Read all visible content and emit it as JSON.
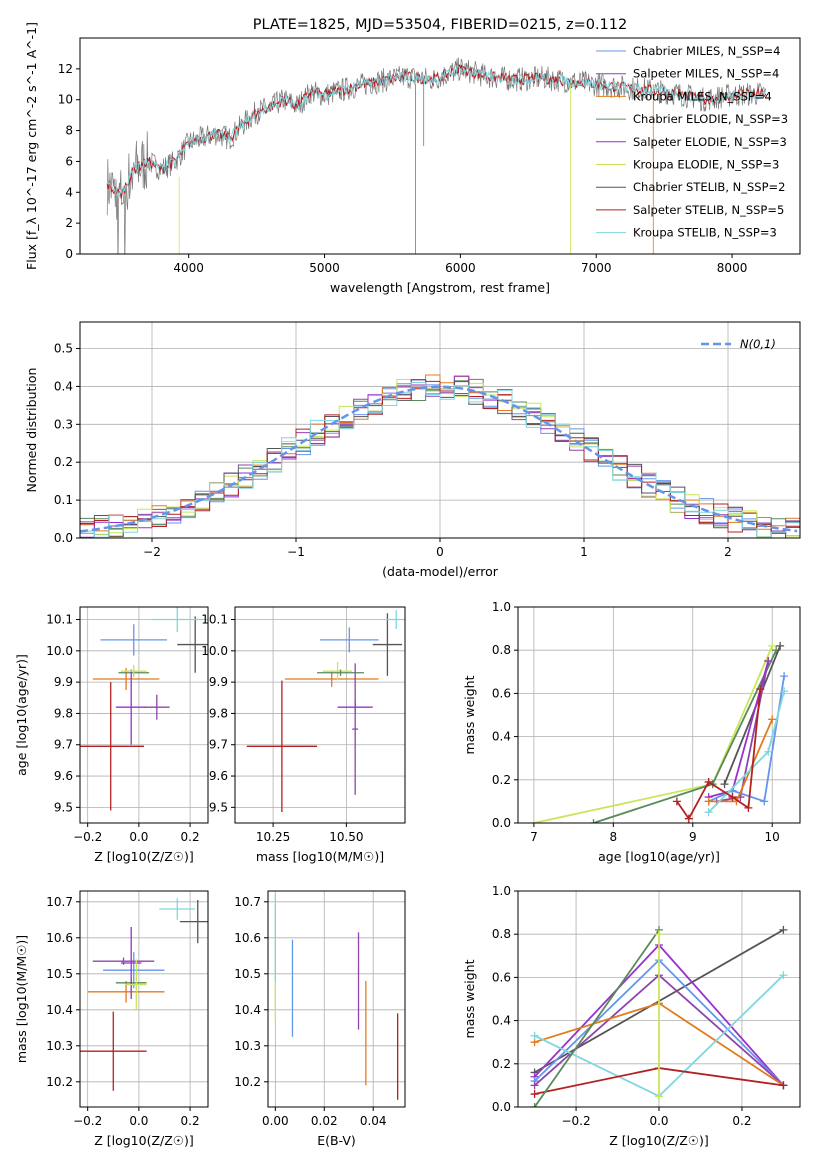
{
  "title": "PLATE=1825, MJD=53504, FIBERID=0215, z=0.112",
  "colors": {
    "Chabrier MILES": "#6495ed",
    "Salpeter MILES": "#8e44ad",
    "Kroupa MILES": "#e07b1f",
    "Chabrier ELODIE": "#5a8a5a",
    "Salpeter ELODIE": "#9932cc",
    "Kroupa ELODIE": "#c8e65a",
    "Chabrier STELIB": "#555555",
    "Salpeter STELIB": "#b22222",
    "Kroupa STELIB": "#7fd6e0"
  },
  "chart_data": [
    {
      "id": "spectrum",
      "type": "line",
      "xlabel": "wavelength [Angstrom, rest frame]",
      "ylabel": "Flux [f_λ 10^-17 erg cm^-2 s^-1 A^-1]",
      "xlim": [
        3200,
        8500
      ],
      "ylim": [
        0,
        14
      ],
      "xticks": [
        4000,
        5000,
        6000,
        7000,
        8000
      ],
      "yticks": [
        0,
        2,
        4,
        6,
        8,
        10,
        12
      ],
      "legend_position": "upper right",
      "legend": [
        "Chabrier MILES, N_SSP=4",
        "Salpeter MILES, N_SSP=4",
        "Kroupa MILES, N_SSP=4",
        "Chabrier ELODIE, N_SSP=3",
        "Salpeter ELODIE, N_SSP=3",
        "Kroupa ELODIE, N_SSP=3",
        "Chabrier STELIB, N_SSP=2",
        "Salpeter STELIB, N_SSP=5",
        "Kroupa STELIB, N_SSP=3"
      ],
      "data_x": [
        3400,
        3500,
        3600,
        3700,
        3800,
        3900,
        4000,
        4100,
        4200,
        4300,
        4400,
        4500,
        4600,
        4700,
        4800,
        4900,
        5000,
        5200,
        5400,
        5600,
        5800,
        6000,
        6200,
        6400,
        6600,
        6800,
        7000,
        7200,
        7400,
        7600,
        7800,
        8000,
        8250
      ],
      "data_y": [
        4.5,
        3.8,
        5.5,
        6,
        5.5,
        6,
        7.2,
        7.5,
        7.8,
        7.5,
        8.4,
        9.2,
        9.5,
        10,
        9.6,
        10.5,
        10.3,
        10.8,
        11.2,
        11.5,
        11.3,
        12,
        11.5,
        11.3,
        11.4,
        11.2,
        11,
        10.8,
        10.6,
        10.4,
        10,
        10.3,
        10.4
      ]
    },
    {
      "id": "residuals",
      "type": "histogram",
      "xlabel": "(data-model)/error",
      "ylabel": "Normed distribution",
      "xlim": [
        -2.5,
        2.5
      ],
      "ylim": [
        0,
        0.57
      ],
      "xticks": [
        -2,
        -1,
        0,
        1,
        2
      ],
      "yticks": [
        0.0,
        0.1,
        0.2,
        0.3,
        0.4,
        0.5
      ],
      "grid": true,
      "legend_position": "upper right",
      "reference_curve": "N(0,1)"
    },
    {
      "id": "age_vs_Z",
      "type": "scatter",
      "error_bars": true,
      "xlabel": "Z [log10(Z/Z☉)]",
      "ylabel": "age [log10(age/yr)]",
      "xlim": [
        -0.23,
        0.27
      ],
      "ylim": [
        9.45,
        10.14
      ],
      "xticks": [
        -0.2,
        0.0,
        0.2
      ],
      "yticks": [
        9.5,
        9.6,
        9.7,
        9.8,
        9.9,
        10.0,
        10.1
      ],
      "grid": true,
      "points": [
        {
          "s": "Chabrier MILES",
          "x": -0.02,
          "xe": 0.13,
          "y": 10.035,
          "ye": 0.05
        },
        {
          "s": "Salpeter MILES",
          "x": 0.07,
          "xe": 0.05,
          "y": 9.82,
          "ye": 0.04
        },
        {
          "s": "Kroupa MILES",
          "x": -0.05,
          "xe": 0.13,
          "y": 9.91,
          "ye": 0.035
        },
        {
          "s": "Chabrier ELODIE",
          "x": -0.02,
          "xe": 0.06,
          "y": 9.93,
          "ye": 0.01
        },
        {
          "s": "Salpeter ELODIE",
          "x": -0.03,
          "xe": 0.06,
          "y": 9.82,
          "ye": 0.12
        },
        {
          "s": "Kroupa ELODIE",
          "x": -0.02,
          "xe": 0.05,
          "y": 9.935,
          "ye": 0.02
        },
        {
          "s": "Chabrier STELIB",
          "x": 0.22,
          "xe": 0.07,
          "y": 10.02,
          "ye": 0.09
        },
        {
          "s": "Salpeter STELIB",
          "x": -0.11,
          "xe": 0.13,
          "y": 9.695,
          "ye": 0.205
        },
        {
          "s": "Kroupa STELIB",
          "x": 0.15,
          "xe": 0.1,
          "y": 10.1,
          "ye": 0.04
        }
      ]
    },
    {
      "id": "age_vs_mass",
      "type": "scatter",
      "error_bars": true,
      "xlabel": "mass [log10(M/M☉)]",
      "ylabel": "",
      "xlim": [
        10.12,
        10.7
      ],
      "ylim": [
        9.45,
        10.14
      ],
      "xticks": [
        10.25,
        10.5
      ],
      "xticklabels": [
        "10.25",
        "10.50"
      ],
      "yticks": [
        9.5,
        9.6,
        9.7,
        9.8,
        9.9,
        10.0,
        10.1
      ],
      "grid": true,
      "points": [
        {
          "s": "Chabrier MILES",
          "x": 10.51,
          "xe": 0.1,
          "y": 10.035,
          "ye": 0.04
        },
        {
          "s": "Kroupa MILES",
          "x": 10.45,
          "xe": 0.16,
          "y": 9.91,
          "ye": 0.025
        },
        {
          "s": "Kroupa ELODIE",
          "x": 10.47,
          "xe": 0.05,
          "y": 9.935,
          "ye": 0.03
        },
        {
          "s": "Chabrier ELODIE",
          "x": 10.48,
          "xe": 0.08,
          "y": 9.93,
          "ye": 0.01
        },
        {
          "s": "Salpeter ELODIE",
          "x": 10.53,
          "xe": 0.06,
          "y": 9.82,
          "ye": 0.02
        },
        {
          "s": "Chabrier STELIB",
          "x": 10.64,
          "xe": 0.05,
          "y": 10.02,
          "ye": 0.1
        },
        {
          "s": "Kroupa STELIB",
          "x": 10.67,
          "xe": 0.04,
          "y": 10.1,
          "ye": 0.03
        },
        {
          "s": "Salpeter STELIB",
          "x": 10.28,
          "xe": 0.12,
          "y": 9.695,
          "ye": 0.21
        },
        {
          "s": "Salpeter MILES",
          "x": 10.53,
          "xe": 0.01,
          "y": 9.75,
          "ye": 0.21
        }
      ]
    },
    {
      "id": "weight_vs_age",
      "type": "line",
      "xlabel": "age [log10(age/yr)]",
      "ylabel": "mass weight",
      "xlim": [
        6.8,
        10.35
      ],
      "ylim": [
        0,
        1
      ],
      "xticks": [
        7,
        8,
        9,
        10
      ],
      "yticks": [
        0.0,
        0.2,
        0.4,
        0.6,
        0.8,
        1.0
      ],
      "grid": true,
      "series": [
        {
          "s": "Kroupa ELODIE",
          "x": [
            7.0,
            9.25,
            10.0
          ],
          "y": [
            0.0,
            0.18,
            0.82
          ]
        },
        {
          "s": "Chabrier ELODIE",
          "x": [
            7.75,
            9.25,
            10.05
          ],
          "y": [
            0.0,
            0.18,
            0.8
          ]
        },
        {
          "s": "Chabrier STELIB",
          "x": [
            9.4,
            10.1
          ],
          "y": [
            0.18,
            0.82
          ]
        },
        {
          "s": "Salpeter ELODIE",
          "x": [
            9.2,
            9.5,
            9.95
          ],
          "y": [
            0.12,
            0.15,
            0.75
          ]
        },
        {
          "s": "Salpeter MILES",
          "x": [
            9.3,
            9.6,
            9.95
          ],
          "y": [
            0.1,
            0.12,
            0.75
          ]
        },
        {
          "s": "Chabrier MILES",
          "x": [
            9.2,
            9.5,
            9.9,
            10.15
          ],
          "y": [
            0.1,
            0.15,
            0.1,
            0.68
          ]
        },
        {
          "s": "Kroupa MILES",
          "x": [
            9.2,
            9.55,
            10.0
          ],
          "y": [
            0.1,
            0.1,
            0.48
          ]
        },
        {
          "s": "Kroupa STELIB",
          "x": [
            9.2,
            9.95,
            10.15
          ],
          "y": [
            0.05,
            0.33,
            0.61
          ]
        },
        {
          "s": "Salpeter STELIB",
          "x": [
            8.8,
            8.95,
            9.2,
            9.5,
            9.7,
            9.85
          ],
          "y": [
            0.1,
            0.02,
            0.19,
            0.12,
            0.07,
            0.62
          ]
        }
      ]
    },
    {
      "id": "mass_vs_Z",
      "type": "scatter",
      "error_bars": true,
      "xlabel": "Z [log10(Z/Z☉)]",
      "ylabel": "mass [log10(M/M☉)]",
      "xlim": [
        -0.23,
        0.27
      ],
      "ylim": [
        10.13,
        10.73
      ],
      "xticks": [
        -0.2,
        0.0,
        0.2
      ],
      "yticks": [
        10.2,
        10.3,
        10.4,
        10.5,
        10.6,
        10.7
      ],
      "grid": true,
      "points": [
        {
          "s": "Chabrier MILES",
          "x": -0.02,
          "xe": 0.12,
          "y": 10.51,
          "ye": 0.05
        },
        {
          "s": "Salpeter MILES",
          "x": -0.06,
          "xe": 0.12,
          "y": 10.535,
          "ye": 0.01
        },
        {
          "s": "Kroupa MILES",
          "x": -0.05,
          "xe": 0.15,
          "y": 10.45,
          "ye": 0.03
        },
        {
          "s": "Chabrier ELODIE",
          "x": -0.03,
          "xe": 0.06,
          "y": 10.475,
          "ye": 0.01
        },
        {
          "s": "Salpeter ELODIE",
          "x": -0.03,
          "xe": 0.04,
          "y": 10.53,
          "ye": 0.1
        },
        {
          "s": "Kroupa ELODIE",
          "x": -0.01,
          "xe": 0.04,
          "y": 10.47,
          "ye": 0.07
        },
        {
          "s": "Chabrier STELIB",
          "x": 0.23,
          "xe": 0.07,
          "y": 10.645,
          "ye": 0.06
        },
        {
          "s": "Salpeter STELIB",
          "x": -0.1,
          "xe": 0.13,
          "y": 10.285,
          "ye": 0.11
        },
        {
          "s": "Kroupa STELIB",
          "x": 0.15,
          "xe": 0.07,
          "y": 10.68,
          "ye": 0.03
        }
      ]
    },
    {
      "id": "mass_vs_EBV",
      "type": "scatter",
      "error_bars": true,
      "xlabel": "E(B-V)",
      "ylabel": "",
      "xlim": [
        -0.003,
        0.053
      ],
      "ylim": [
        10.13,
        10.73
      ],
      "xticks": [
        0.0,
        0.02,
        0.04
      ],
      "xticklabels": [
        "0.00",
        "0.02",
        "0.04"
      ],
      "yticks": [
        10.2,
        10.3,
        10.4,
        10.5,
        10.6,
        10.7
      ],
      "grid": true,
      "points": [
        {
          "s": "Kroupa ELODIE",
          "x": 0.0,
          "y": 10.53,
          "ye": 0.16
        },
        {
          "s": "Kroupa STELIB",
          "x": 0.0,
          "y": 10.6,
          "ye": 0.12
        },
        {
          "s": "Chabrier MILES",
          "x": 0.007,
          "y": 10.46,
          "ye": 0.135
        },
        {
          "s": "Salpeter MILES",
          "x": 0.034,
          "y": 10.48,
          "ye": 0.135
        },
        {
          "s": "Kroupa MILES",
          "x": 0.037,
          "y": 10.335,
          "ye": 0.145
        },
        {
          "s": "Salpeter STELIB",
          "x": 0.05,
          "y": 10.27,
          "ye": 0.12
        }
      ]
    },
    {
      "id": "weight_vs_Z",
      "type": "line",
      "xlabel": "Z [log10(Z/Z☉)]",
      "ylabel": "mass weight",
      "xlim": [
        -0.34,
        0.34
      ],
      "ylim": [
        0,
        1
      ],
      "xticks": [
        -0.2,
        0.0,
        0.2
      ],
      "yticks": [
        0.0,
        0.2,
        0.4,
        0.6,
        0.8,
        1.0
      ],
      "grid": true,
      "series": [
        {
          "s": "Chabrier STELIB",
          "x": [
            -0.3,
            0.3
          ],
          "y": [
            0.16,
            0.82
          ]
        },
        {
          "s": "Salpeter ELODIE",
          "x": [
            -0.3,
            0.0,
            0.3
          ],
          "y": [
            0.14,
            0.75,
            0.1
          ]
        },
        {
          "s": "Chabrier MILES",
          "x": [
            -0.3,
            0.0,
            0.3
          ],
          "y": [
            0.12,
            0.68,
            0.1
          ]
        },
        {
          "s": "Salpeter MILES",
          "x": [
            -0.3,
            0.0,
            0.3
          ],
          "y": [
            0.1,
            0.61,
            0.1
          ]
        },
        {
          "s": "Kroupa MILES",
          "x": [
            -0.3,
            0.0,
            0.3
          ],
          "y": [
            0.3,
            0.48,
            0.1
          ]
        },
        {
          "s": "Kroupa STELIB",
          "x": [
            -0.3,
            0.0,
            0.3
          ],
          "y": [
            0.33,
            0.05,
            0.61
          ]
        },
        {
          "s": "Salpeter STELIB",
          "x": [
            -0.3,
            0.0,
            0.3
          ],
          "y": [
            0.06,
            0.18,
            0.1
          ]
        },
        {
          "s": "Chabrier ELODIE",
          "x": [
            -0.3,
            0.0
          ],
          "y": [
            0.0,
            0.82
          ]
        },
        {
          "s": "Kroupa ELODIE",
          "x": [
            0.0,
            0.0
          ],
          "y": [
            0.05,
            0.8
          ]
        }
      ]
    }
  ]
}
